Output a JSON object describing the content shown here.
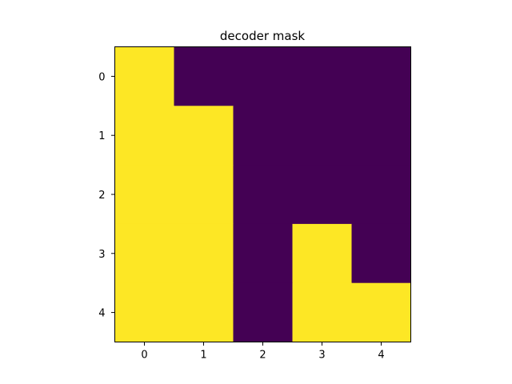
{
  "chart_data": {
    "type": "heatmap",
    "title": "decoder mask",
    "xlabel": "",
    "ylabel": "",
    "x_ticks": [
      "0",
      "1",
      "2",
      "3",
      "4"
    ],
    "y_ticks": [
      "0",
      "1",
      "2",
      "3",
      "4"
    ],
    "rows": 5,
    "cols": 5,
    "values": [
      [
        1,
        0,
        0,
        0,
        0
      ],
      [
        1,
        1,
        0,
        0,
        0
      ],
      [
        1,
        1,
        0,
        0,
        0
      ],
      [
        1,
        1,
        0,
        1,
        0
      ],
      [
        1,
        1,
        0,
        1,
        1
      ]
    ],
    "colormap": "viridis",
    "color_low": "#440154",
    "color_high": "#fde725",
    "grid": false,
    "legend": "none"
  }
}
